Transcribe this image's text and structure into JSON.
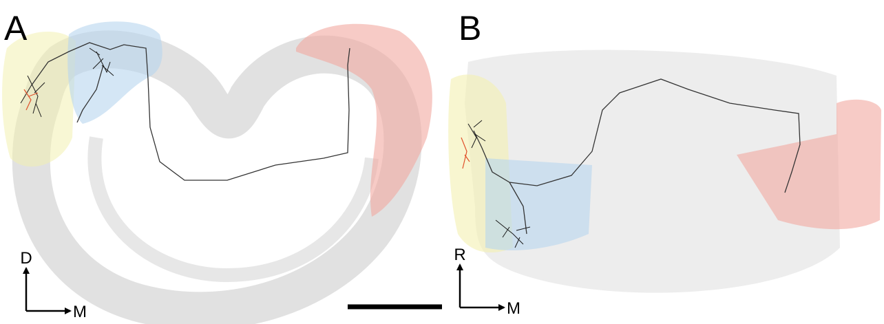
{
  "panels": [
    {
      "label": "A",
      "axes": {
        "vertical": "D",
        "horizontal": "M"
      }
    },
    {
      "label": "B",
      "axes": {
        "vertical": "R",
        "horizontal": "M"
      }
    }
  ]
}
